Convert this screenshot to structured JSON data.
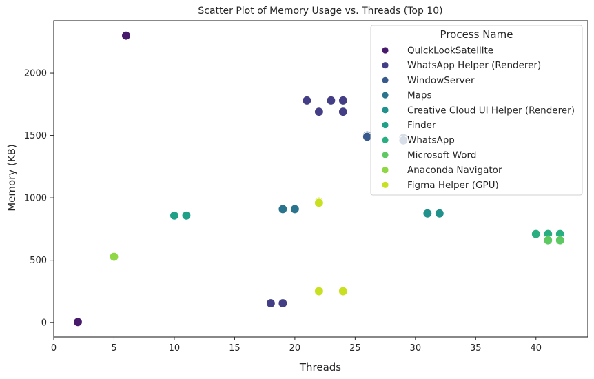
{
  "chart_data": {
    "type": "scatter",
    "title": "Scatter Plot of Memory Usage vs. Threads (Top 10)",
    "xlabel": "Threads",
    "ylabel": "Memory (KB)",
    "xlim": [
      0,
      44.3
    ],
    "ylim": [
      -115,
      2420
    ],
    "xticks": [
      "0",
      "5",
      "10",
      "15",
      "20",
      "25",
      "30",
      "35",
      "40"
    ],
    "yticks": [
      "0",
      "500",
      "1000",
      "1500",
      "2000"
    ],
    "grid": false,
    "legend": {
      "title": "Process Name",
      "placement": "top-right"
    },
    "series": [
      {
        "name": "QuickLookSatellite",
        "color": "#481a6c",
        "points": [
          [
            2,
            5
          ],
          [
            6,
            2300
          ]
        ]
      },
      {
        "name": "WhatsApp Helper (Renderer)",
        "color": "#433e85",
        "points": [
          [
            21,
            1780
          ],
          [
            23,
            1780
          ],
          [
            24,
            1780
          ],
          [
            22,
            1690
          ],
          [
            24,
            1690
          ],
          [
            18,
            155
          ],
          [
            19,
            155
          ]
        ]
      },
      {
        "name": "WindowServer",
        "color": "#38598c",
        "points": [
          [
            26,
            1500
          ],
          [
            26,
            1490
          ],
          [
            29,
            1480
          ],
          [
            29,
            1460
          ]
        ]
      },
      {
        "name": "Maps",
        "color": "#2b748e",
        "points": [
          [
            19,
            910
          ],
          [
            20,
            910
          ]
        ]
      },
      {
        "name": "Creative Cloud UI Helper (Renderer)",
        "color": "#21918c",
        "points": [
          [
            31,
            875
          ],
          [
            32,
            875
          ]
        ]
      },
      {
        "name": "Finder",
        "color": "#1fa088",
        "points": [
          [
            10,
            858
          ],
          [
            11,
            858
          ]
        ]
      },
      {
        "name": "WhatsApp",
        "color": "#28ae80",
        "points": [
          [
            40,
            710
          ],
          [
            41,
            710
          ],
          [
            42,
            710
          ]
        ]
      },
      {
        "name": "Microsoft Word",
        "color": "#5ec962",
        "points": [
          [
            41,
            660
          ],
          [
            42,
            660
          ]
        ]
      },
      {
        "name": "Anaconda Navigator",
        "color": "#8fd744",
        "points": [
          [
            5,
            528
          ]
        ]
      },
      {
        "name": "Figma Helper (GPU)",
        "color": "#c8e020",
        "points": [
          [
            22,
            970
          ],
          [
            22,
            960
          ],
          [
            22,
            252
          ],
          [
            24,
            252
          ]
        ]
      }
    ]
  }
}
